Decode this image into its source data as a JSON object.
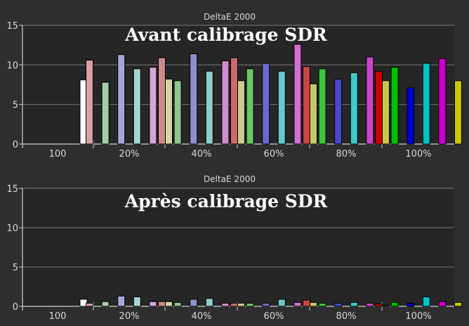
{
  "chart_data": [
    {
      "type": "bar",
      "title": "DeltaE 2000",
      "overlay_title": "Avant calibrage SDR",
      "ylim": [
        0,
        15
      ],
      "yticks": [
        "0",
        "5",
        "10",
        "15"
      ],
      "grid": true,
      "groups": [
        {
          "label": "100",
          "values": [
            8.1
          ],
          "colors": [
            "#ffffff"
          ]
        },
        {
          "label": "20%",
          "values": [
            10.6,
            7.8,
            11.3,
            9.5,
            9.7,
            8.2
          ],
          "colors": [
            "#d4a2a2",
            "#a6cca6",
            "#a7a7d6",
            "#a6d4d4",
            "#d6a6d6",
            "#d4d4a4"
          ]
        },
        {
          "label": "40%",
          "values": [
            10.9,
            8.0,
            11.4,
            9.2,
            10.5,
            8.0
          ],
          "colors": [
            "#cc8a8a",
            "#8fc68f",
            "#8f8fcc",
            "#8fcccc",
            "#cc8fcc",
            "#cccc8f"
          ]
        },
        {
          "label": "60%",
          "values": [
            10.9,
            9.5,
            10.2,
            9.2,
            12.6,
            7.6
          ],
          "colors": [
            "#c86a6a",
            "#6ac66a",
            "#6a6ac8",
            "#6ac8c8",
            "#d070d0",
            "#c8c86a"
          ]
        },
        {
          "label": "80%",
          "values": [
            9.8,
            9.5,
            8.2,
            9.0,
            11.0,
            8.0
          ],
          "colors": [
            "#c84646",
            "#3ec43e",
            "#4848c8",
            "#40c8c8",
            "#c846c8",
            "#c8c846"
          ]
        },
        {
          "label": "100%",
          "values": [
            9.2,
            9.7,
            7.1,
            10.2,
            10.8,
            8.0
          ],
          "colors": [
            "#cc0000",
            "#00c000",
            "#0000cc",
            "#00c4c4",
            "#cc00cc",
            "#c8c800"
          ]
        }
      ]
    },
    {
      "type": "bar",
      "title": "DeltaE 2000",
      "overlay_title": "Après calibrage SDR",
      "ylim": [
        0,
        15
      ],
      "yticks": [
        "0",
        "5",
        "10",
        "15"
      ],
      "grid": true,
      "groups": [
        {
          "label": "100",
          "values": [
            0.9
          ],
          "colors": [
            "#ffffff"
          ]
        },
        {
          "label": "20%",
          "values": [
            0.4,
            0.6,
            1.3,
            1.2,
            0.6,
            0.6
          ],
          "colors": [
            "#d4a2a2",
            "#a6cca6",
            "#a7a7d6",
            "#a6d4d4",
            "#d6a6d6",
            "#d4d4a4"
          ]
        },
        {
          "label": "40%",
          "values": [
            0.6,
            0.5,
            0.9,
            1.0,
            0.4,
            0.4
          ],
          "colors": [
            "#cc8a8a",
            "#8fc68f",
            "#8f8fcc",
            "#8fcccc",
            "#cc8fcc",
            "#cccc8f"
          ]
        },
        {
          "label": "60%",
          "values": [
            0.4,
            0.4,
            0.4,
            0.9,
            0.5,
            0.5
          ],
          "colors": [
            "#c86a6a",
            "#6ac66a",
            "#6a6ac8",
            "#6ac8c8",
            "#d070d0",
            "#c8c86a"
          ]
        },
        {
          "label": "80%",
          "values": [
            0.8,
            0.4,
            0.4,
            0.5,
            0.4,
            0.1
          ],
          "colors": [
            "#c84646",
            "#3ec43e",
            "#4848c8",
            "#40c8c8",
            "#c846c8",
            "#c8c846"
          ]
        },
        {
          "label": "100%",
          "values": [
            0.3,
            0.5,
            0.4,
            1.2,
            0.6,
            0.5
          ],
          "colors": [
            "#cc0000",
            "#00c000",
            "#0000cc",
            "#00c4c4",
            "#cc00cc",
            "#c8c800"
          ]
        }
      ]
    }
  ],
  "colors": {
    "background": "#2e2e2e",
    "plot_background": "#262626",
    "gridline": "#7a7a7a",
    "axis": "#cfcfcf",
    "bar_outline": "#000000"
  }
}
